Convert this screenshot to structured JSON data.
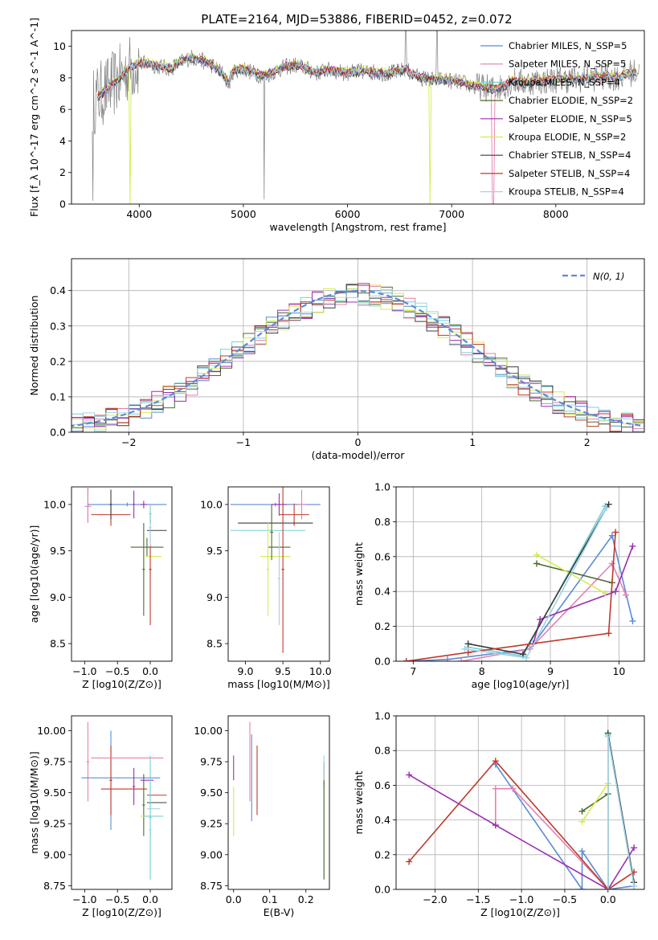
{
  "chart_data": [
    {
      "type": "line",
      "title": "PLATE=2164, MJD=53886, FIBERID=0452, z=0.072",
      "xlabel": "wavelength [Angstrom, rest frame]",
      "ylabel": "Flux [f_λ 10^-17 erg cm^-2 s^-1 A^-1]",
      "xlim": [
        3350,
        8850
      ],
      "ylim": [
        0,
        11
      ],
      "xticks": [
        "4000",
        "5000",
        "6000",
        "7000",
        "8000"
      ],
      "yticks": [
        "0",
        "2",
        "4",
        "6",
        "8",
        "10"
      ],
      "grid": false,
      "legend_position": "top-right",
      "continuum": {
        "x": [
          3550,
          3600,
          3700,
          3800,
          3900,
          4000,
          4100,
          4200,
          4300,
          4400,
          4500,
          4600,
          4700,
          4800,
          4860,
          4900,
          5000,
          5100,
          5200,
          5300,
          5400,
          5500,
          5600,
          5700,
          5800,
          5900,
          6000,
          6100,
          6200,
          6300,
          6400,
          6500,
          6563,
          6600,
          6700,
          6800,
          6900,
          7000,
          7100,
          7200,
          7300,
          7400,
          7500,
          7600,
          7700,
          7800,
          7900,
          8000,
          8100,
          8200,
          8300,
          8400,
          8500,
          8600,
          8700,
          8800
        ],
        "y": [
          6.4,
          6.8,
          7.3,
          7.9,
          8.6,
          8.9,
          8.9,
          8.7,
          8.6,
          9.0,
          9.3,
          9.1,
          8.8,
          8.3,
          7.6,
          8.4,
          8.6,
          8.3,
          8.1,
          8.4,
          8.7,
          8.8,
          8.6,
          8.3,
          8.5,
          8.4,
          8.3,
          8.4,
          8.4,
          8.3,
          8.3,
          8.4,
          8.6,
          8.3,
          8.0,
          7.9,
          7.9,
          7.8,
          7.7,
          7.5,
          7.4,
          7.3,
          7.5,
          7.8,
          7.7,
          7.8,
          7.8,
          7.9,
          7.9,
          7.9,
          8.0,
          8.0,
          8.1,
          8.0,
          8.3,
          8.4
        ]
      },
      "series": [
        {
          "name": "Chabrier MILES, N_SSP=5",
          "color": "#5b8bd6",
          "offset": 0.0
        },
        {
          "name": "Salpeter MILES, N_SSP=5",
          "color": "#e77fae",
          "offset": -0.05
        },
        {
          "name": "Kroupa MILES, N_SSP=4",
          "color": "#78cfd4",
          "offset": 0.05
        },
        {
          "name": "Chabrier ELODIE, N_SSP=2",
          "color": "#4b6b2e",
          "offset": -0.02
        },
        {
          "name": "Salpeter ELODIE, N_SSP=5",
          "color": "#9b2fb0",
          "offset": 0.08
        },
        {
          "name": "Kroupa ELODIE, N_SSP=2",
          "color": "#d8ea4e",
          "offset": 0.12
        },
        {
          "name": "Chabrier STELIB, N_SSP=4",
          "color": "#3c3c3c",
          "offset": -0.08
        },
        {
          "name": "Salpeter STELIB, N_SSP=4",
          "color": "#c0392b",
          "offset": 0.03
        },
        {
          "name": "Kroupa STELIB, N_SSP=4",
          "color": "#9fd3e8",
          "offset": -0.03
        }
      ],
      "data_color": "#808080"
    },
    {
      "type": "histogram",
      "xlabel": "(data-model)/error",
      "ylabel": "Normed distribution",
      "xlim": [
        -2.5,
        2.5
      ],
      "ylim": [
        0,
        0.49
      ],
      "xticks": [
        "−2",
        "−1",
        "0",
        "1",
        "2"
      ],
      "yticks": [
        "0.0",
        "0.1",
        "0.2",
        "0.3",
        "0.4"
      ],
      "grid": true,
      "legend_position": "top-right",
      "reference_curve": {
        "label": "N(0, 1)",
        "color": "#5b8bd6",
        "style": "dashed"
      },
      "bin_width": 0.1
    },
    {
      "type": "scatter",
      "xlabel": "Z [log10(Z/Z⊙)]",
      "ylabel": "age [log10(age/yr)]",
      "xlim": [
        -1.2,
        0.33
      ],
      "ylim": [
        8.31,
        10.19
      ],
      "xticks": [
        "−1.0",
        "−0.5",
        "0.0"
      ],
      "yticks": [
        "8.5",
        "9.0",
        "9.5",
        "10.0"
      ],
      "grid": false,
      "points": [
        {
          "x": -0.95,
          "xe": 0.0,
          "y": 10.0,
          "ye": 0.18,
          "c": 0
        },
        {
          "x": -0.95,
          "xe": 0.05,
          "y": 9.98,
          "ye": 0.18,
          "c": 1
        },
        {
          "x": -0.35,
          "xe": 0.6,
          "y": 10.0,
          "ye": 0.02,
          "c": 0
        },
        {
          "x": -0.6,
          "xe": 0.3,
          "y": 9.89,
          "ye": 0.12,
          "c": 7
        },
        {
          "x": -0.6,
          "xe": 0.02,
          "y": 10.0,
          "ye": 0.16,
          "c": 6
        },
        {
          "x": -0.25,
          "xe": 0.02,
          "y": 10.0,
          "ye": 0.15,
          "c": 4
        },
        {
          "x": -0.1,
          "xe": 0.05,
          "y": 10.0,
          "ye": 0.04,
          "c": 4
        },
        {
          "x": -0.05,
          "xe": 0.25,
          "y": 9.54,
          "ye": 0.1,
          "c": 3
        },
        {
          "x": -0.1,
          "xe": 0.02,
          "y": 9.3,
          "ye": 0.5,
          "c": 3
        },
        {
          "x": 0.05,
          "xe": 0.12,
          "y": 9.44,
          "ye": 0.0,
          "c": 5
        },
        {
          "x": 0.0,
          "xe": 0.02,
          "y": 9.3,
          "ye": 0.6,
          "c": 7
        },
        {
          "x": 0.1,
          "xe": 0.15,
          "y": 9.72,
          "ye": 0.0,
          "c": 6
        },
        {
          "x": 0.0,
          "xe": 0.02,
          "y": 9.75,
          "ye": 0.2,
          "c": 8
        },
        {
          "x": 0.0,
          "xe": 0.02,
          "y": 9.9,
          "ye": 0.1,
          "c": 2
        }
      ]
    },
    {
      "type": "scatter",
      "xlabel": "mass [log10(M/M⊙)]",
      "ylabel": "",
      "xlim": [
        8.77,
        10.12
      ],
      "ylim": [
        8.31,
        10.19
      ],
      "xticks": [
        "9.0",
        "9.5",
        "10.0"
      ],
      "yticks": [
        "8.5",
        "9.0",
        "9.5",
        "10.0"
      ],
      "grid": false,
      "points": [
        {
          "x": 9.4,
          "xe": 0.6,
          "y": 10.0,
          "ye": 0.02,
          "c": 0
        },
        {
          "x": 9.75,
          "xe": 0.05,
          "y": 10.0,
          "ye": 0.16,
          "c": 1
        },
        {
          "x": 9.65,
          "xe": 0.2,
          "y": 9.89,
          "ye": 0.12,
          "c": 7
        },
        {
          "x": 9.45,
          "xe": 0.1,
          "y": 10.0,
          "ye": 0.12,
          "c": 4
        },
        {
          "x": 9.4,
          "xe": 0.5,
          "y": 9.8,
          "ye": 0.0,
          "c": 6
        },
        {
          "x": 9.3,
          "xe": 0.5,
          "y": 9.72,
          "ye": 0.0,
          "c": 2
        },
        {
          "x": 9.45,
          "xe": 0.15,
          "y": 9.54,
          "ye": 0.0,
          "c": 3
        },
        {
          "x": 9.3,
          "xe": 0.02,
          "y": 9.3,
          "ye": 0.5,
          "c": 5
        },
        {
          "x": 9.4,
          "xe": 0.2,
          "y": 9.44,
          "ye": 0.0,
          "c": 5
        },
        {
          "x": 9.45,
          "xe": 0.02,
          "y": 9.2,
          "ye": 0.5,
          "c": 8
        },
        {
          "x": 9.5,
          "xe": 0.02,
          "y": 9.3,
          "ye": 0.9,
          "c": 7
        },
        {
          "x": 9.35,
          "xe": 0.02,
          "y": 9.7,
          "ye": 0.3,
          "c": 3
        }
      ]
    },
    {
      "type": "line",
      "xlabel": "age [log10(age/yr)]",
      "ylabel": "mass weight",
      "xlim": [
        6.75,
        10.37
      ],
      "ylim": [
        0,
        1.0
      ],
      "xticks": [
        "7",
        "8",
        "9",
        "10"
      ],
      "yticks": [
        "0.0",
        "0.2",
        "0.4",
        "0.6",
        "0.8",
        "1.0"
      ],
      "grid": true,
      "lines": [
        {
          "c": 0,
          "x": [
            6.9,
            7.5,
            8.7,
            9.9,
            10.2
          ],
          "y": [
            0.0,
            0.01,
            0.07,
            0.72,
            0.23
          ]
        },
        {
          "c": 1,
          "x": [
            7.7,
            8.7,
            9.9,
            10.1
          ],
          "y": [
            0.0,
            0.07,
            0.56,
            0.38
          ]
        },
        {
          "c": 2,
          "x": [
            7.8,
            8.6,
            9.8
          ],
          "y": [
            0.08,
            0.03,
            0.89
          ]
        },
        {
          "c": 3,
          "x": [
            8.8,
            9.9
          ],
          "y": [
            0.56,
            0.45
          ]
        },
        {
          "c": 4,
          "x": [
            8.75,
            8.85,
            9.95,
            10.2
          ],
          "y": [
            0.1,
            0.24,
            0.4,
            0.66
          ]
        },
        {
          "c": 5,
          "x": [
            8.8,
            9.8
          ],
          "y": [
            0.61,
            0.39
          ]
        },
        {
          "c": 6,
          "x": [
            7.8,
            8.6,
            9.85
          ],
          "y": [
            0.1,
            0.04,
            0.9
          ]
        },
        {
          "c": 7,
          "x": [
            6.9,
            7.8,
            9.85,
            9.95
          ],
          "y": [
            0.0,
            0.05,
            0.16,
            0.74
          ]
        },
        {
          "c": 8,
          "x": [
            7.75,
            8.65,
            9.82
          ],
          "y": [
            0.07,
            0.02,
            0.88
          ]
        }
      ]
    },
    {
      "type": "scatter",
      "xlabel": "Z [log10(Z/Z⊙)]",
      "ylabel": "mass [log10(M/M⊙)]",
      "xlim": [
        -1.2,
        0.33
      ],
      "ylim": [
        8.72,
        10.12
      ],
      "xticks": [
        "−1.0",
        "−0.5",
        "0.0"
      ],
      "yticks": [
        "8.75",
        "9.00",
        "9.25",
        "9.50",
        "9.75",
        "10.00"
      ],
      "grid": false,
      "points": [
        {
          "x": -0.95,
          "xe": 0.02,
          "y": 9.75,
          "ye": 0.32,
          "c": 1
        },
        {
          "x": -0.45,
          "xe": 0.6,
          "y": 9.62,
          "ye": 0.0,
          "c": 0
        },
        {
          "x": -0.6,
          "xe": 0.02,
          "y": 9.6,
          "ye": 0.4,
          "c": 0
        },
        {
          "x": -0.6,
          "xe": 0.02,
          "y": 9.6,
          "ye": 0.28,
          "c": 7
        },
        {
          "x": -0.4,
          "xe": 0.35,
          "y": 9.53,
          "ye": 0.0,
          "c": 7
        },
        {
          "x": -0.35,
          "xe": 0.55,
          "y": 9.78,
          "ye": 0.0,
          "c": 1
        },
        {
          "x": -0.25,
          "xe": 0.02,
          "y": 9.55,
          "ye": 0.15,
          "c": 4
        },
        {
          "x": -0.1,
          "xe": 0.02,
          "y": 9.4,
          "ye": 0.25,
          "c": 3
        },
        {
          "x": -0.05,
          "xe": 0.1,
          "y": 9.6,
          "ye": 0.0,
          "c": 4
        },
        {
          "x": 0.1,
          "xe": 0.15,
          "y": 9.48,
          "ye": 0.0,
          "c": 7
        },
        {
          "x": 0.1,
          "xe": 0.15,
          "y": 9.42,
          "ye": 0.0,
          "c": 6
        },
        {
          "x": 0.05,
          "xe": 0.1,
          "y": 9.37,
          "ye": 0.0,
          "c": 8
        },
        {
          "x": -0.05,
          "xe": 0.1,
          "y": 9.31,
          "ye": 0.0,
          "c": 5
        },
        {
          "x": 0.05,
          "xe": 0.15,
          "y": 9.31,
          "ye": 0.0,
          "c": 2
        },
        {
          "x": 0.0,
          "xe": 0.02,
          "y": 9.2,
          "ye": 0.4,
          "c": 8
        },
        {
          "x": 0.0,
          "xe": 0.02,
          "y": 9.3,
          "ye": 0.5,
          "c": 2
        }
      ]
    },
    {
      "type": "scatter",
      "xlabel": "E(B-V)",
      "ylabel": "",
      "xlim": [
        -0.015,
        0.265
      ],
      "ylim": [
        8.72,
        10.12
      ],
      "xticks": [
        "0.0",
        "0.1",
        "0.2"
      ],
      "yticks": [
        "8.75",
        "9.00",
        "9.25",
        "9.50",
        "9.75",
        "10.00"
      ],
      "grid": false,
      "points": [
        {
          "x": 0.0,
          "xe": 0.0,
          "y": 9.7,
          "ye": 0.1,
          "c": 4
        },
        {
          "x": 0.0,
          "xe": 0.0,
          "y": 9.35,
          "ye": 0.2,
          "c": 5
        },
        {
          "x": 0.045,
          "xe": 0.0,
          "y": 9.75,
          "ye": 0.32,
          "c": 1
        },
        {
          "x": 0.05,
          "xe": 0.0,
          "y": 9.62,
          "ye": 0.35,
          "c": 0
        },
        {
          "x": 0.065,
          "xe": 0.0,
          "y": 9.6,
          "ye": 0.28,
          "c": 7
        },
        {
          "x": 0.25,
          "xe": 0.0,
          "y": 9.65,
          "ye": 0.1,
          "c": 7
        },
        {
          "x": 0.25,
          "xe": 0.0,
          "y": 9.3,
          "ye": 0.5,
          "c": 8
        },
        {
          "x": 0.25,
          "xe": 0.0,
          "y": 9.2,
          "ye": 0.4,
          "c": 3
        }
      ]
    },
    {
      "type": "line",
      "xlabel": "Z [log10(Z/Z⊙)]",
      "ylabel": "mass weight",
      "xlim": [
        -2.45,
        0.42
      ],
      "ylim": [
        0,
        1.0
      ],
      "xticks": [
        "−2.0",
        "−1.5",
        "−1.0",
        "−0.5",
        "0.0"
      ],
      "yticks": [
        "0.0",
        "0.2",
        "0.4",
        "0.6",
        "0.8",
        "1.0"
      ],
      "grid": true,
      "lines": [
        {
          "c": 0,
          "x": [
            -1.3,
            -0.3,
            -0.3,
            0.0,
            0.3
          ],
          "y": [
            0.72,
            0.0,
            0.22,
            0.0,
            0.02
          ]
        },
        {
          "c": 1,
          "x": [
            -1.3,
            -1.3,
            -1.1,
            0.0
          ],
          "y": [
            0.37,
            0.58,
            0.58,
            0.0
          ]
        },
        {
          "c": 2,
          "x": [
            0.0,
            0.0,
            0.3
          ],
          "y": [
            0.0,
            0.89,
            0.02
          ]
        },
        {
          "c": 3,
          "x": [
            -0.3,
            0.0
          ],
          "y": [
            0.45,
            0.55
          ]
        },
        {
          "c": 4,
          "x": [
            -2.3,
            -1.3,
            0.0,
            0.3
          ],
          "y": [
            0.66,
            0.37,
            0.0,
            0.24
          ]
        },
        {
          "c": 5,
          "x": [
            -0.3,
            0.0,
            0.0
          ],
          "y": [
            0.39,
            0.61,
            0.0
          ]
        },
        {
          "c": 6,
          "x": [
            0.0,
            0.0,
            0.3
          ],
          "y": [
            0.0,
            0.9,
            0.04
          ]
        },
        {
          "c": 7,
          "x": [
            -2.3,
            -1.3,
            0.0,
            0.3
          ],
          "y": [
            0.16,
            0.74,
            0.0,
            0.1
          ]
        },
        {
          "c": 8,
          "x": [
            0.0,
            0.0,
            0.3
          ],
          "y": [
            0.0,
            0.88,
            0.02
          ]
        }
      ]
    }
  ]
}
